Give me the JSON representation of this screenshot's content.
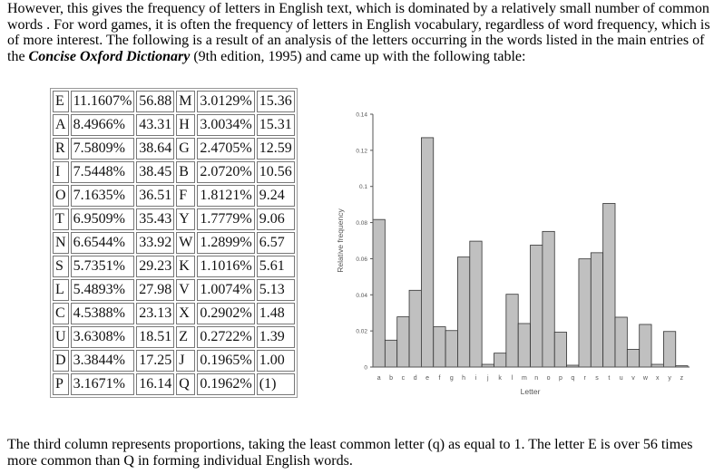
{
  "intro": {
    "before_bold": "However, this gives the frequency of letters in English text, which is dominated by a relatively small number of common words . For word games, it is often the frequency of letters in English vocabulary, regardless of word frequency, which is of more interest. The following is a result of an analysis of the letters occurring in the words listed in the main entries of the ",
    "bold": "Concise Oxford Dictionary",
    "after_bold": " (9th edition, 1995) and came up with the following table:"
  },
  "table": {
    "rows": [
      [
        "E",
        "11.1607%",
        "56.88",
        "M",
        "3.0129%",
        "15.36"
      ],
      [
        "A",
        "8.4966%",
        "43.31",
        "H",
        "3.0034%",
        "15.31"
      ],
      [
        "R",
        "7.5809%",
        "38.64",
        "G",
        "2.4705%",
        "12.59"
      ],
      [
        "I",
        "7.5448%",
        "38.45",
        "B",
        "2.0720%",
        "10.56"
      ],
      [
        "O",
        "7.1635%",
        "36.51",
        "F",
        "1.8121%",
        "9.24"
      ],
      [
        "T",
        "6.9509%",
        "35.43",
        "Y",
        "1.7779%",
        "9.06"
      ],
      [
        "N",
        "6.6544%",
        "33.92",
        "W",
        "1.2899%",
        "6.57"
      ],
      [
        "S",
        "5.7351%",
        "29.23",
        "K",
        "1.1016%",
        "5.61"
      ],
      [
        "L",
        "5.4893%",
        "27.98",
        "V",
        "1.0074%",
        "5.13"
      ],
      [
        "C",
        "4.5388%",
        "23.13",
        "X",
        "0.2902%",
        "1.48"
      ],
      [
        "U",
        "3.6308%",
        "18.51",
        "Z",
        "0.2722%",
        "1.39"
      ],
      [
        "D",
        "3.3844%",
        "17.25",
        "J",
        "0.1965%",
        "1.00"
      ],
      [
        "P",
        "3.1671%",
        "16.14",
        "Q",
        "0.1962%",
        "(1)"
      ]
    ]
  },
  "chart_data": {
    "type": "bar",
    "xlabel": "Letter",
    "ylabel": "Relative frequency",
    "ylim": [
      0,
      0.14
    ],
    "yticks": [
      "0",
      "0.02",
      "0.04",
      "0.06",
      "0.08",
      "0.1",
      "0.12",
      "0.14"
    ],
    "categories": [
      "a",
      "b",
      "c",
      "d",
      "e",
      "f",
      "g",
      "h",
      "i",
      "j",
      "k",
      "l",
      "m",
      "n",
      "o",
      "p",
      "q",
      "r",
      "s",
      "t",
      "u",
      "v",
      "w",
      "x",
      "y",
      "z"
    ],
    "values": [
      0.0817,
      0.0149,
      0.0278,
      0.0425,
      0.127,
      0.0223,
      0.0202,
      0.0609,
      0.0697,
      0.0015,
      0.0077,
      0.0403,
      0.0241,
      0.0675,
      0.0751,
      0.0193,
      0.001,
      0.0599,
      0.0633,
      0.0906,
      0.0276,
      0.0098,
      0.0236,
      0.0015,
      0.0197,
      0.0007
    ],
    "bar_color": "#c0c0c0",
    "grid": false
  },
  "outro": "The third column represents proportions, taking the least common letter (q) as equal to 1. The letter E is over 56 times more common than Q in forming individual English words."
}
